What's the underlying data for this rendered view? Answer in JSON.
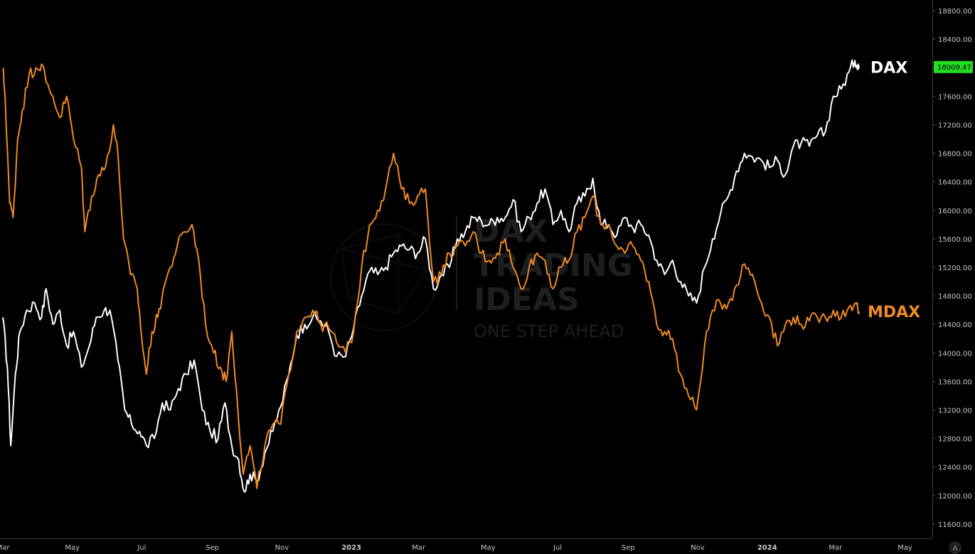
{
  "chart_data": {
    "type": "line",
    "y_axis_ticks": [
      "18800.00",
      "18400.00",
      "18000.00",
      "17600.00",
      "17200.00",
      "16800.00",
      "16400.00",
      "16000.00",
      "15600.00",
      "15200.00",
      "14800.00",
      "14400.00",
      "14000.00",
      "13600.00",
      "13200.00",
      "12800.00",
      "12400.00",
      "12000.00",
      "11600.00"
    ],
    "x_axis_ticks": [
      "Mar",
      "May",
      "Jul",
      "Sep",
      "Nov",
      "2023",
      "Mar",
      "May",
      "Jul",
      "Sep",
      "Nov",
      "2024",
      "Mar",
      "May"
    ],
    "ylim": [
      11400,
      18950
    ],
    "x_range": [
      "2022-03-01",
      "2024-05-15"
    ],
    "grid": false,
    "price_tag": {
      "value": "18009.47",
      "color": "#22dd22"
    },
    "axis_badge": "A",
    "watermark": {
      "lines": [
        "DAX",
        "TRADING",
        "IDEAS"
      ],
      "tagline": "ONE STEP AHEAD"
    },
    "series": [
      {
        "name": "DAX",
        "color": "#ffffff",
        "points": [
          [
            "2022-03-01",
            14500
          ],
          [
            "2022-03-05",
            13800
          ],
          [
            "2022-03-08",
            12700
          ],
          [
            "2022-03-12",
            13700
          ],
          [
            "2022-03-16",
            14300
          ],
          [
            "2022-03-22",
            14600
          ],
          [
            "2022-03-29",
            14700
          ],
          [
            "2022-04-04",
            14500
          ],
          [
            "2022-04-08",
            14900
          ],
          [
            "2022-04-14",
            14400
          ],
          [
            "2022-04-20",
            14600
          ],
          [
            "2022-04-26",
            14100
          ],
          [
            "2022-05-02",
            14300
          ],
          [
            "2022-05-09",
            13800
          ],
          [
            "2022-05-16",
            14100
          ],
          [
            "2022-05-22",
            14500
          ],
          [
            "2022-05-29",
            14600
          ],
          [
            "2022-06-03",
            14600
          ],
          [
            "2022-06-10",
            13900
          ],
          [
            "2022-06-16",
            13200
          ],
          [
            "2022-06-22",
            13000
          ],
          [
            "2022-06-29",
            12900
          ],
          [
            "2022-07-05",
            12700
          ],
          [
            "2022-07-12",
            12800
          ],
          [
            "2022-07-19",
            13300
          ],
          [
            "2022-07-26",
            13200
          ],
          [
            "2022-08-02",
            13500
          ],
          [
            "2022-08-09",
            13700
          ],
          [
            "2022-08-16",
            13900
          ],
          [
            "2022-08-23",
            13200
          ],
          [
            "2022-08-30",
            12900
          ],
          [
            "2022-09-06",
            12800
          ],
          [
            "2022-09-12",
            13300
          ],
          [
            "2022-09-18",
            12700
          ],
          [
            "2022-09-24",
            12500
          ],
          [
            "2022-09-29",
            12050
          ],
          [
            "2022-10-04",
            12300
          ],
          [
            "2022-10-10",
            12200
          ],
          [
            "2022-10-17",
            12600
          ],
          [
            "2022-10-24",
            12900
          ],
          [
            "2022-10-31",
            13250
          ],
          [
            "2022-11-07",
            13700
          ],
          [
            "2022-11-14",
            14250
          ],
          [
            "2022-11-21",
            14400
          ],
          [
            "2022-11-28",
            14500
          ],
          [
            "2022-12-05",
            14450
          ],
          [
            "2022-12-12",
            14300
          ],
          [
            "2022-12-19",
            13950
          ],
          [
            "2022-12-27",
            13950
          ],
          [
            "2023-01-03",
            14350
          ],
          [
            "2023-01-10",
            14800
          ],
          [
            "2023-01-17",
            15150
          ],
          [
            "2023-01-24",
            15100
          ],
          [
            "2023-01-31",
            15200
          ],
          [
            "2023-02-07",
            15400
          ],
          [
            "2023-02-14",
            15500
          ],
          [
            "2023-02-21",
            15450
          ],
          [
            "2023-02-28",
            15400
          ],
          [
            "2023-03-07",
            15600
          ],
          [
            "2023-03-14",
            14900
          ],
          [
            "2023-03-21",
            15100
          ],
          [
            "2023-03-28",
            15200
          ],
          [
            "2023-04-04",
            15600
          ],
          [
            "2023-04-11",
            15700
          ],
          [
            "2023-04-18",
            15900
          ],
          [
            "2023-04-25",
            15850
          ],
          [
            "2023-05-02",
            15800
          ],
          [
            "2023-05-09",
            15900
          ],
          [
            "2023-05-16",
            15900
          ],
          [
            "2023-05-23",
            16150
          ],
          [
            "2023-05-30",
            15700
          ],
          [
            "2023-06-06",
            15900
          ],
          [
            "2023-06-13",
            16100
          ],
          [
            "2023-06-20",
            16300
          ],
          [
            "2023-06-27",
            15800
          ],
          [
            "2023-07-04",
            16000
          ],
          [
            "2023-07-11",
            15700
          ],
          [
            "2023-07-18",
            16100
          ],
          [
            "2023-07-25",
            16200
          ],
          [
            "2023-08-01",
            16450
          ],
          [
            "2023-08-08",
            15800
          ],
          [
            "2023-08-15",
            15800
          ],
          [
            "2023-08-22",
            15650
          ],
          [
            "2023-08-29",
            15900
          ],
          [
            "2023-09-05",
            15750
          ],
          [
            "2023-09-12",
            15800
          ],
          [
            "2023-09-19",
            15650
          ],
          [
            "2023-09-26",
            15300
          ],
          [
            "2023-10-03",
            15100
          ],
          [
            "2023-10-10",
            15300
          ],
          [
            "2023-10-17",
            15000
          ],
          [
            "2023-10-24",
            14800
          ],
          [
            "2023-10-31",
            14700
          ],
          [
            "2023-11-07",
            15200
          ],
          [
            "2023-11-14",
            15600
          ],
          [
            "2023-11-21",
            15950
          ],
          [
            "2023-11-28",
            16200
          ],
          [
            "2023-12-05",
            16550
          ],
          [
            "2023-12-12",
            16800
          ],
          [
            "2023-12-19",
            16750
          ],
          [
            "2023-12-27",
            16700
          ],
          [
            "2024-01-03",
            16600
          ],
          [
            "2024-01-10",
            16700
          ],
          [
            "2024-01-17",
            16500
          ],
          [
            "2024-01-24",
            16900
          ],
          [
            "2024-01-31",
            16950
          ],
          [
            "2024-02-07",
            16900
          ],
          [
            "2024-02-14",
            17050
          ],
          [
            "2024-02-21",
            17100
          ],
          [
            "2024-02-28",
            17600
          ],
          [
            "2024-03-06",
            17700
          ],
          [
            "2024-03-13",
            17950
          ],
          [
            "2024-03-18",
            18100
          ],
          [
            "2024-03-21",
            18050
          ],
          [
            "2024-03-22",
            18009
          ]
        ]
      },
      {
        "name": "MDAX",
        "color": "#f08a24",
        "points": [
          [
            "2022-03-01",
            18000
          ],
          [
            "2022-03-03",
            17600
          ],
          [
            "2022-03-07",
            16100
          ],
          [
            "2022-03-10",
            15900
          ],
          [
            "2022-03-14",
            17000
          ],
          [
            "2022-03-18",
            17400
          ],
          [
            "2022-03-24",
            17900
          ],
          [
            "2022-03-30",
            18000
          ],
          [
            "2022-04-04",
            18050
          ],
          [
            "2022-04-08",
            17800
          ],
          [
            "2022-04-14",
            17600
          ],
          [
            "2022-04-20",
            17300
          ],
          [
            "2022-04-26",
            17600
          ],
          [
            "2022-05-02",
            17000
          ],
          [
            "2022-05-09",
            16600
          ],
          [
            "2022-05-12",
            15700
          ],
          [
            "2022-05-18",
            16200
          ],
          [
            "2022-05-24",
            16500
          ],
          [
            "2022-05-30",
            16600
          ],
          [
            "2022-06-06",
            17200
          ],
          [
            "2022-06-10",
            16800
          ],
          [
            "2022-06-15",
            15600
          ],
          [
            "2022-06-21",
            15100
          ],
          [
            "2022-06-27",
            14900
          ],
          [
            "2022-07-01",
            14200
          ],
          [
            "2022-07-05",
            13700
          ],
          [
            "2022-07-10",
            14300
          ],
          [
            "2022-07-15",
            14500
          ],
          [
            "2022-07-20",
            14900
          ],
          [
            "2022-07-26",
            15200
          ],
          [
            "2022-08-01",
            15500
          ],
          [
            "2022-08-08",
            15700
          ],
          [
            "2022-08-14",
            15800
          ],
          [
            "2022-08-20",
            15300
          ],
          [
            "2022-08-26",
            14400
          ],
          [
            "2022-09-02",
            14000
          ],
          [
            "2022-09-08",
            13800
          ],
          [
            "2022-09-13",
            13600
          ],
          [
            "2022-09-18",
            14300
          ],
          [
            "2022-09-22",
            13500
          ],
          [
            "2022-09-28",
            12300
          ],
          [
            "2022-10-04",
            12700
          ],
          [
            "2022-10-10",
            12100
          ],
          [
            "2022-10-17",
            12700
          ],
          [
            "2022-10-24",
            13000
          ],
          [
            "2022-10-31",
            13000
          ],
          [
            "2022-11-07",
            13700
          ],
          [
            "2022-11-14",
            14300
          ],
          [
            "2022-11-21",
            14500
          ],
          [
            "2022-11-28",
            14600
          ],
          [
            "2022-12-05",
            14400
          ],
          [
            "2022-12-12",
            14350
          ],
          [
            "2022-12-19",
            14150
          ],
          [
            "2022-12-27",
            14000
          ],
          [
            "2023-01-03",
            14300
          ],
          [
            "2023-01-10",
            15200
          ],
          [
            "2023-01-17",
            15800
          ],
          [
            "2023-01-24",
            16000
          ],
          [
            "2023-01-31",
            16300
          ],
          [
            "2023-02-07",
            16800
          ],
          [
            "2023-02-14",
            16300
          ],
          [
            "2023-02-21",
            16100
          ],
          [
            "2023-02-28",
            16200
          ],
          [
            "2023-03-07",
            16300
          ],
          [
            "2023-03-14",
            15000
          ],
          [
            "2023-03-21",
            15100
          ],
          [
            "2023-03-28",
            15400
          ],
          [
            "2023-04-04",
            15500
          ],
          [
            "2023-04-11",
            15500
          ],
          [
            "2023-04-18",
            15700
          ],
          [
            "2023-04-25",
            15400
          ],
          [
            "2023-05-02",
            15300
          ],
          [
            "2023-05-09",
            15400
          ],
          [
            "2023-05-16",
            15600
          ],
          [
            "2023-05-23",
            15200
          ],
          [
            "2023-05-30",
            14900
          ],
          [
            "2023-06-06",
            15200
          ],
          [
            "2023-06-13",
            15400
          ],
          [
            "2023-06-20",
            15300
          ],
          [
            "2023-06-27",
            14900
          ],
          [
            "2023-07-04",
            15200
          ],
          [
            "2023-07-11",
            15300
          ],
          [
            "2023-07-18",
            15700
          ],
          [
            "2023-07-25",
            15900
          ],
          [
            "2023-08-01",
            16200
          ],
          [
            "2023-08-08",
            15800
          ],
          [
            "2023-08-15",
            15800
          ],
          [
            "2023-08-22",
            15500
          ],
          [
            "2023-08-29",
            15400
          ],
          [
            "2023-09-05",
            15500
          ],
          [
            "2023-09-12",
            15300
          ],
          [
            "2023-09-19",
            15000
          ],
          [
            "2023-09-26",
            14400
          ],
          [
            "2023-10-03",
            14300
          ],
          [
            "2023-10-10",
            14200
          ],
          [
            "2023-10-17",
            13700
          ],
          [
            "2023-10-24",
            13400
          ],
          [
            "2023-10-31",
            13200
          ],
          [
            "2023-11-07",
            14100
          ],
          [
            "2023-11-14",
            14600
          ],
          [
            "2023-11-21",
            14700
          ],
          [
            "2023-11-28",
            14700
          ],
          [
            "2023-12-05",
            14950
          ],
          [
            "2023-12-12",
            15250
          ],
          [
            "2023-12-19",
            15100
          ],
          [
            "2023-12-27",
            14700
          ],
          [
            "2024-01-03",
            14500
          ],
          [
            "2024-01-10",
            14100
          ],
          [
            "2024-01-17",
            14400
          ],
          [
            "2024-01-24",
            14500
          ],
          [
            "2024-01-31",
            14400
          ],
          [
            "2024-02-07",
            14450
          ],
          [
            "2024-02-14",
            14500
          ],
          [
            "2024-02-21",
            14500
          ],
          [
            "2024-02-28",
            14600
          ],
          [
            "2024-03-06",
            14500
          ],
          [
            "2024-03-13",
            14650
          ],
          [
            "2024-03-18",
            14700
          ],
          [
            "2024-03-22",
            14580
          ]
        ]
      }
    ]
  }
}
